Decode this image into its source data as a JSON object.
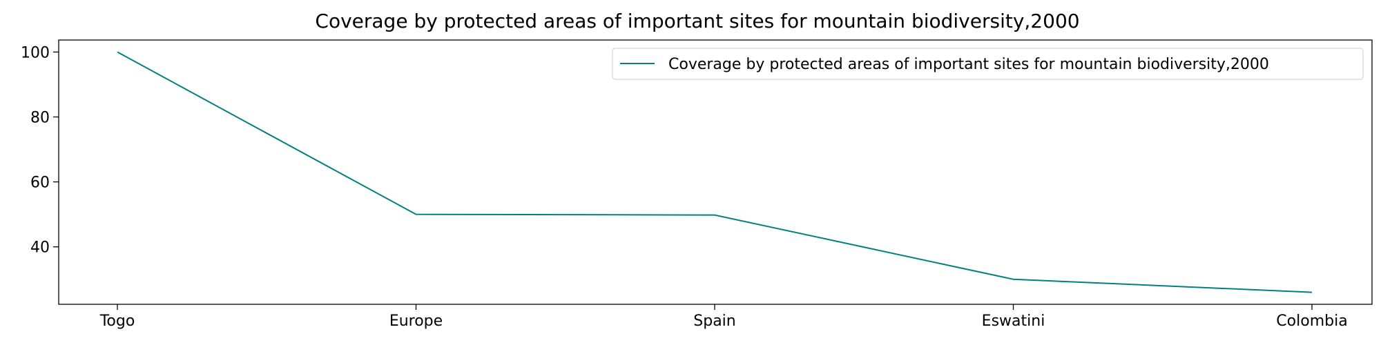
{
  "chart_data": {
    "type": "line",
    "title": "Coverage by protected areas of important sites for mountain biodiversity,2000",
    "xlabel": "",
    "ylabel": "",
    "categories": [
      "Togo",
      "Europe",
      "Spain",
      "Eswatini",
      "Colombia"
    ],
    "series": [
      {
        "name": "Coverage by protected areas of important sites for mountain biodiversity,2000",
        "values": [
          100,
          50,
          49.8,
          30,
          26
        ],
        "color": "#008080"
      }
    ],
    "ylim": [
      22.3,
      103.7
    ],
    "yticks": [
      40,
      60,
      80,
      100
    ],
    "grid": false,
    "legend_position": "top-right"
  }
}
